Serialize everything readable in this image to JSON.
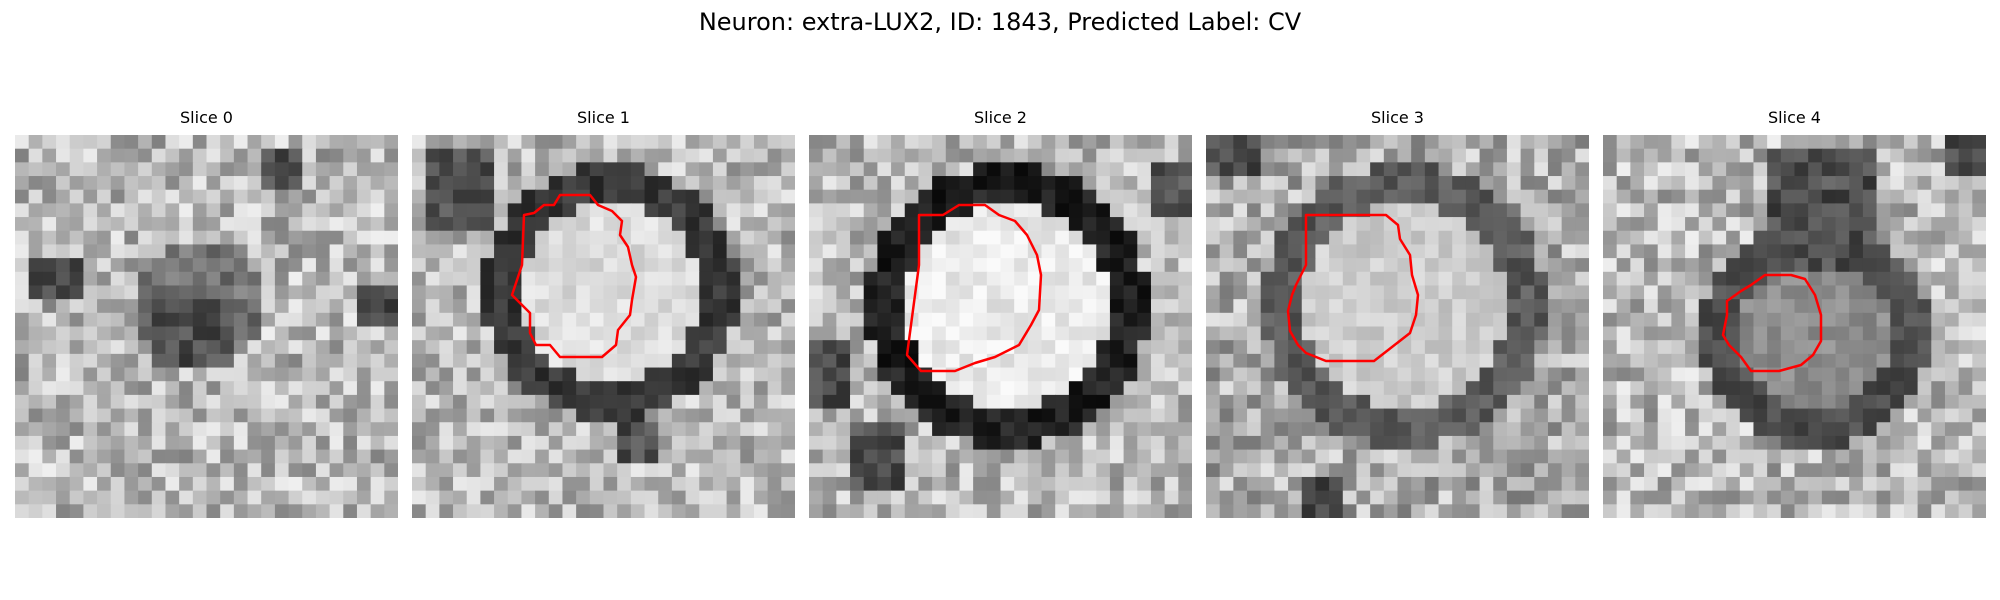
{
  "figure": {
    "title": "Neuron: extra-LUX2, ID: 1843, Predicted Label: CV"
  },
  "style": {
    "contour_color": "#ff0000"
  },
  "panels": [
    {
      "title": "Slice 0",
      "has_contour": false
    },
    {
      "title": "Slice 1",
      "has_contour": true
    },
    {
      "title": "Slice 2",
      "has_contour": true
    },
    {
      "title": "Slice 3",
      "has_contour": true
    },
    {
      "title": "Slice 4",
      "has_contour": true
    }
  ]
}
